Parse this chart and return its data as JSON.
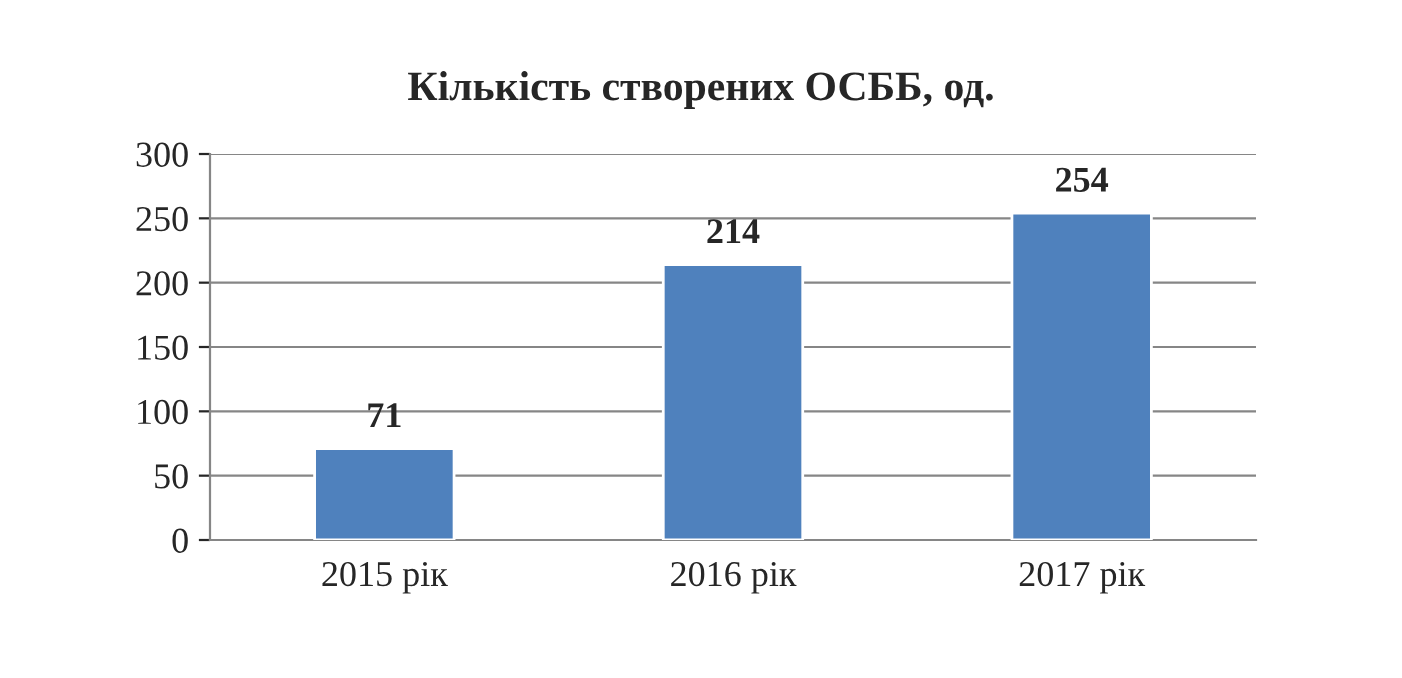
{
  "chart_data": {
    "type": "bar",
    "title": "Кількість створених ОСББ, од.",
    "categories": [
      "2015 рік",
      "2016 рік",
      "2017 рік"
    ],
    "values": [
      71,
      214,
      254
    ],
    "color": "#4f81bd",
    "ylim": [
      0,
      300
    ],
    "yticks": [
      0,
      50,
      100,
      150,
      200,
      250,
      300
    ],
    "grid": "y",
    "data_labels": true,
    "legend": false
  }
}
